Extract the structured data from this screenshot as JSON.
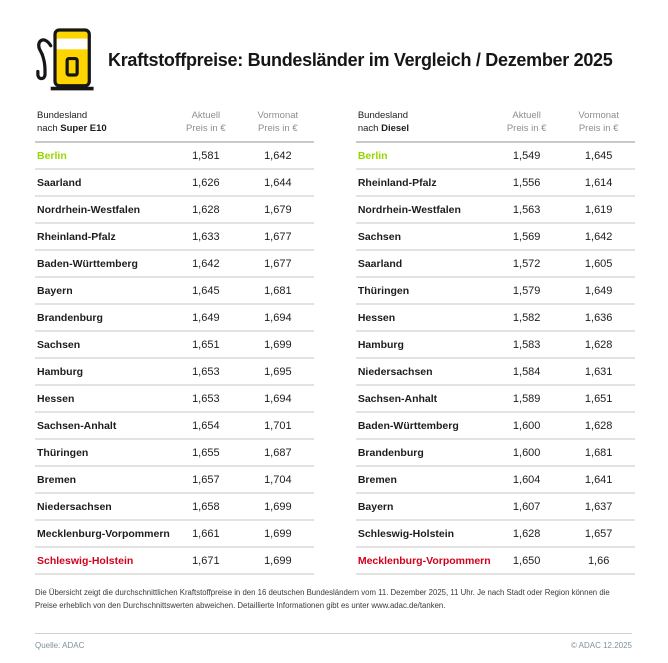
{
  "header": {
    "title": "Kraftstoffpreise: Bundesländer im Vergleich / Dezember 2025",
    "icon": "fuel-pump-icon"
  },
  "colors": {
    "green_highlight": "#97d700",
    "red_highlight": "#d0021b",
    "accent_yellow": "#ffd500"
  },
  "chart_data": [
    {
      "type": "table",
      "name": "super-e10",
      "head": {
        "col1_line1": "Bundesland",
        "nach": "nach ",
        "fuel": "Super E10",
        "col2": [
          "Aktuell",
          "Preis in €"
        ],
        "col3": [
          "Vormonat",
          "Preis in €"
        ]
      },
      "rows": [
        {
          "state": "Berlin",
          "aktuell": "1,581",
          "vormonat": "1,642",
          "color": "green"
        },
        {
          "state": "Saarland",
          "aktuell": "1,626",
          "vormonat": "1,644"
        },
        {
          "state": "Nordrhein-Westfalen",
          "aktuell": "1,628",
          "vormonat": "1,679"
        },
        {
          "state": "Rheinland-Pfalz",
          "aktuell": "1,633",
          "vormonat": "1,677"
        },
        {
          "state": "Baden-Württemberg",
          "aktuell": "1,642",
          "vormonat": "1,677"
        },
        {
          "state": "Bayern",
          "aktuell": "1,645",
          "vormonat": "1,681"
        },
        {
          "state": "Brandenburg",
          "aktuell": "1,649",
          "vormonat": "1,694"
        },
        {
          "state": "Sachsen",
          "aktuell": "1,651",
          "vormonat": "1,699"
        },
        {
          "state": "Hamburg",
          "aktuell": "1,653",
          "vormonat": "1,695"
        },
        {
          "state": "Hessen",
          "aktuell": "1,653",
          "vormonat": "1,694"
        },
        {
          "state": "Sachsen-Anhalt",
          "aktuell": "1,654",
          "vormonat": "1,701"
        },
        {
          "state": "Thüringen",
          "aktuell": "1,655",
          "vormonat": "1,687"
        },
        {
          "state": "Bremen",
          "aktuell": "1,657",
          "vormonat": "1,704"
        },
        {
          "state": "Niedersachsen",
          "aktuell": "1,658",
          "vormonat": "1,699"
        },
        {
          "state": "Mecklenburg-Vorpommern",
          "aktuell": "1,661",
          "vormonat": "1,699"
        },
        {
          "state": "Schleswig-Holstein",
          "aktuell": "1,671",
          "vormonat": "1,699",
          "color": "red"
        }
      ]
    },
    {
      "type": "table",
      "name": "diesel",
      "head": {
        "col1_line1": "Bundesland",
        "nach": "nach ",
        "fuel": "Diesel",
        "col2": [
          "Aktuell",
          "Preis in €"
        ],
        "col3": [
          "Vormonat",
          "Preis in €"
        ]
      },
      "rows": [
        {
          "state": "Berlin",
          "aktuell": "1,549",
          "vormonat": "1,645",
          "color": "green"
        },
        {
          "state": "Rheinland-Pfalz",
          "aktuell": "1,556",
          "vormonat": "1,614"
        },
        {
          "state": "Nordrhein-Westfalen",
          "aktuell": "1,563",
          "vormonat": "1,619"
        },
        {
          "state": "Sachsen",
          "aktuell": "1,569",
          "vormonat": "1,642"
        },
        {
          "state": "Saarland",
          "aktuell": "1,572",
          "vormonat": "1,605"
        },
        {
          "state": "Thüringen",
          "aktuell": "1,579",
          "vormonat": "1,649"
        },
        {
          "state": "Hessen",
          "aktuell": "1,582",
          "vormonat": "1,636"
        },
        {
          "state": "Hamburg",
          "aktuell": "1,583",
          "vormonat": "1,628"
        },
        {
          "state": "Niedersachsen",
          "aktuell": "1,584",
          "vormonat": "1,631"
        },
        {
          "state": "Sachsen-Anhalt",
          "aktuell": "1,589",
          "vormonat": "1,651"
        },
        {
          "state": "Baden-Württemberg",
          "aktuell": "1,600",
          "vormonat": "1,628"
        },
        {
          "state": "Brandenburg",
          "aktuell": "1,600",
          "vormonat": "1,681"
        },
        {
          "state": "Bremen",
          "aktuell": "1,604",
          "vormonat": "1,641"
        },
        {
          "state": "Bayern",
          "aktuell": "1,607",
          "vormonat": "1,637"
        },
        {
          "state": "Schleswig-Holstein",
          "aktuell": "1,628",
          "vormonat": "1,657"
        },
        {
          "state": "Mecklenburg-Vorpommern",
          "aktuell": "1,650",
          "vormonat": "1,66",
          "color": "red"
        }
      ]
    }
  ],
  "footnote": {
    "text": "Die Übersicht zeigt die durchschnittlichen Kraftstoffpreise in den 16 deutschen Bundesländern vom 11. Dezember 2025, 11 Uhr. Je nach Stadt oder Region können die Preise erheblich von den Durchschnittswerten abweichen. Detaillierte Informationen gibt es unter www.adac.de/tanken."
  },
  "footer": {
    "source": "Quelle: ADAC",
    "copyright": "© ADAC 12.2025"
  }
}
